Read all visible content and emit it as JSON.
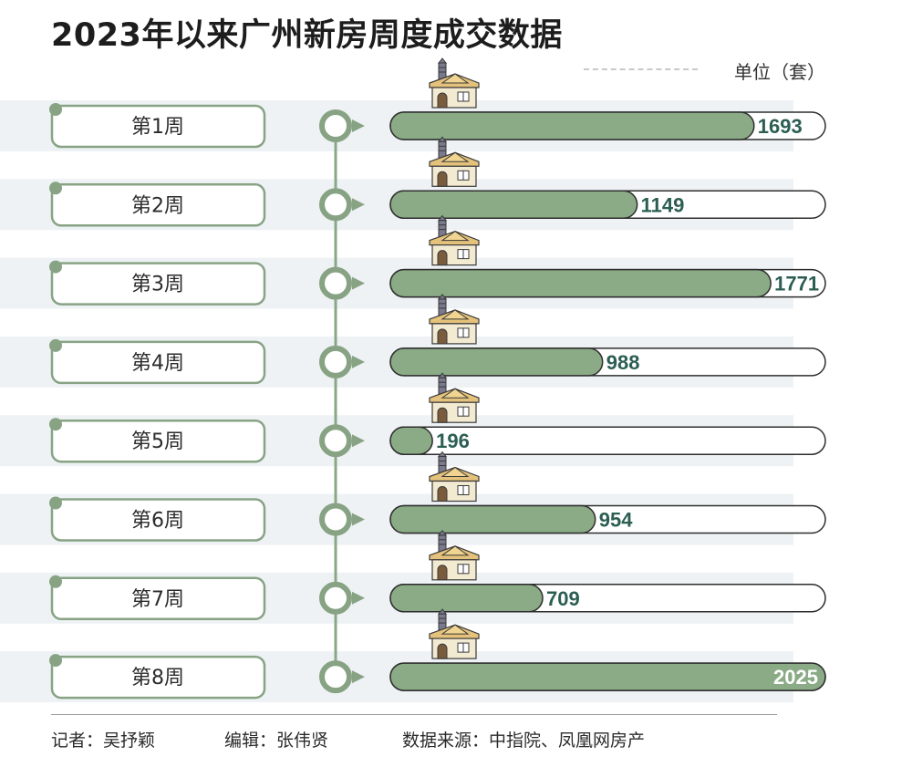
{
  "title": "2023年以来广州新房周度成交数据",
  "unit_label": "单位（套）",
  "colors": {
    "bar_fill": "#8aab86",
    "accent": "#87a384",
    "value_text": "#2c5e52",
    "row_band": "#eef2f5"
  },
  "icons": [
    "house-icon",
    "timeline-node-icon"
  ],
  "chart_data": {
    "type": "bar",
    "orientation": "horizontal",
    "title": "2023年以来广州新房周度成交数据",
    "unit": "单位（套）",
    "categories": [
      "第1周",
      "第2周",
      "第3周",
      "第4周",
      "第5周",
      "第6周",
      "第7周",
      "第8周"
    ],
    "values": [
      1693,
      1149,
      1771,
      988,
      196,
      954,
      709,
      2025
    ],
    "xlim": [
      0,
      2025
    ],
    "grid": false,
    "legend": "none"
  },
  "footer": {
    "reporter": "记者：吴抒颖",
    "editor": "编辑：张伟贤",
    "source": "数据来源：中指院、凤凰网房产"
  }
}
